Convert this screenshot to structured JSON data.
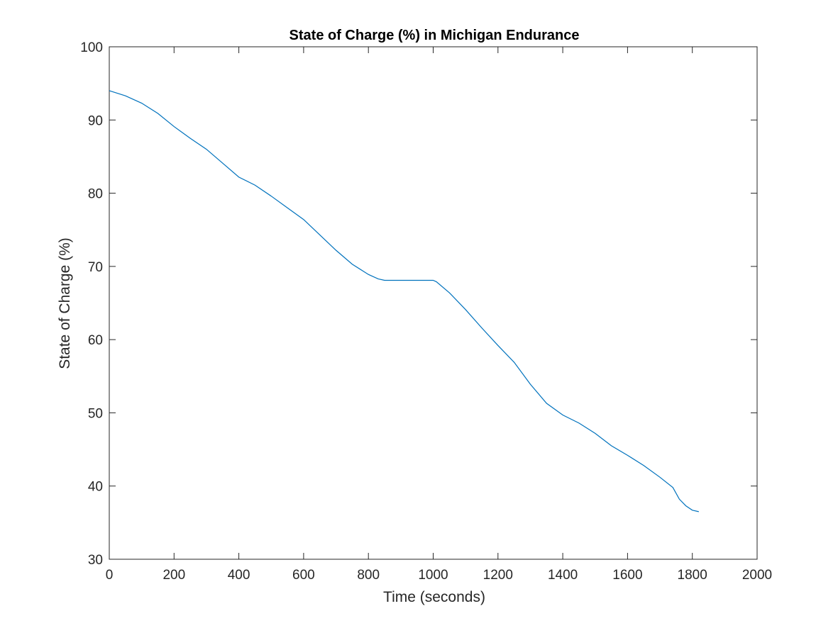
{
  "chart_data": {
    "type": "line",
    "title": "State of Charge (%) in Michigan Endurance",
    "xlabel": "Time (seconds)",
    "ylabel": "State of Charge (%)",
    "xlim": [
      0,
      2000
    ],
    "ylim": [
      30,
      100
    ],
    "xticks": [
      "0",
      "200",
      "400",
      "600",
      "800",
      "1000",
      "1200",
      "1400",
      "1600",
      "1800",
      "2000"
    ],
    "yticks": [
      "30",
      "40",
      "50",
      "60",
      "70",
      "80",
      "90",
      "100"
    ],
    "grid": false,
    "series_color": "#0072BD",
    "series": [
      {
        "x": [
          0,
          50,
          100,
          150,
          200,
          250,
          300,
          350,
          400,
          450,
          500,
          550,
          600,
          650,
          700,
          750,
          800,
          830,
          850,
          900,
          950,
          1000,
          1010,
          1050,
          1100,
          1150,
          1200,
          1250,
          1300,
          1350,
          1400,
          1450,
          1500,
          1550,
          1600,
          1650,
          1700,
          1740,
          1760,
          1780,
          1800,
          1820
        ],
        "y": [
          94.0,
          93.3,
          92.3,
          90.9,
          89.1,
          87.5,
          86.0,
          84.1,
          82.2,
          81.1,
          79.6,
          78.0,
          76.4,
          74.3,
          72.2,
          70.3,
          68.9,
          68.3,
          68.1,
          68.1,
          68.1,
          68.1,
          67.9,
          66.4,
          64.1,
          61.6,
          59.2,
          56.9,
          53.9,
          51.3,
          49.7,
          48.6,
          47.2,
          45.5,
          44.2,
          42.8,
          41.2,
          39.8,
          38.2,
          37.3,
          36.7,
          36.5
        ]
      }
    ]
  }
}
